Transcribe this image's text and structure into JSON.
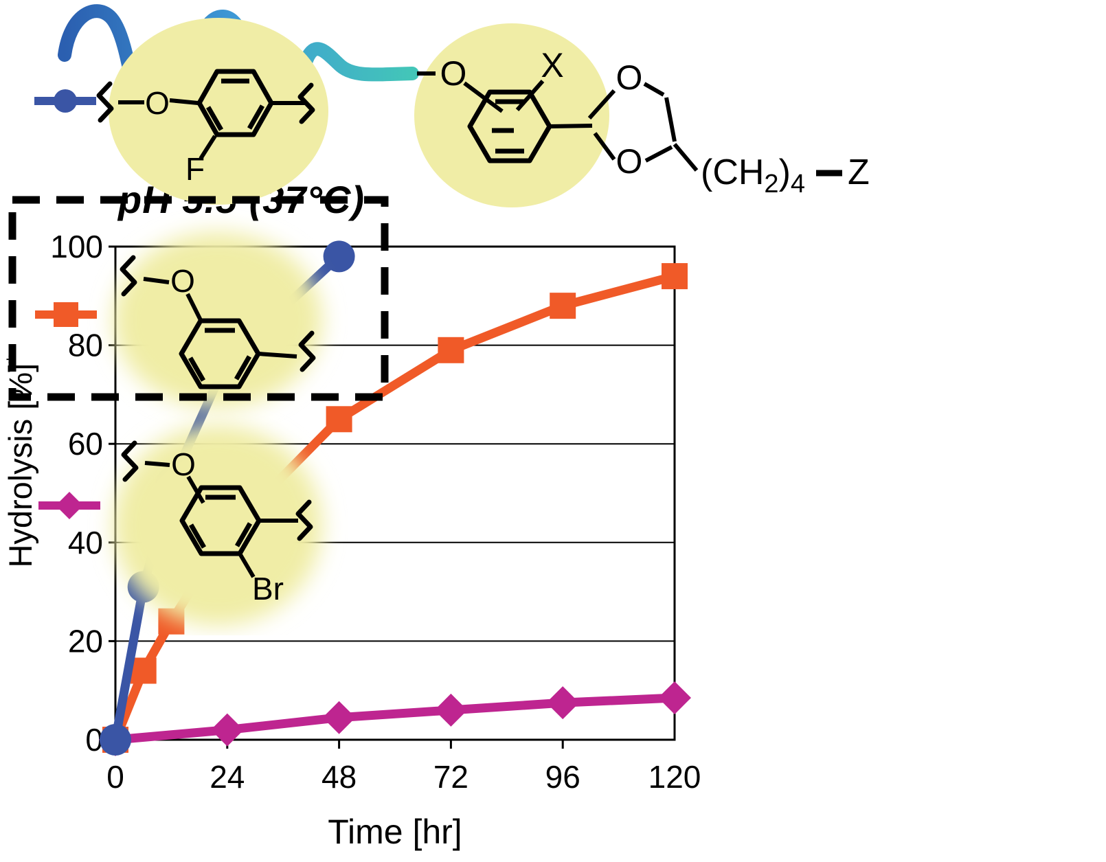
{
  "figure": {
    "title": "pH 5.5 (37°C)",
    "y_axis_label": "Hydrolysis [%]",
    "y_axis_label_superscript": "*",
    "x_axis_label": "Time [hr]"
  },
  "top_structure": {
    "ether_oxygen": "O",
    "substituent_x": "X",
    "dioxolane_oxygen_top": "O",
    "dioxolane_oxygen_bottom": "O",
    "chain_prefix": "(CH",
    "chain_sub_2": "2",
    "chain_paren": ")",
    "chain_sub_4": "4",
    "chain_terminal": "Z"
  },
  "chart_data": {
    "type": "line",
    "title": "pH 5.5 (37°C)",
    "xlabel": "Time [hr]",
    "ylabel": "Hydrolysis [%]*",
    "xlim": [
      0,
      120
    ],
    "ylim": [
      0,
      100
    ],
    "xticks": [
      0,
      24,
      48,
      72,
      96,
      120
    ],
    "yticks": [
      0,
      20,
      40,
      60,
      80,
      100
    ],
    "grid": "horizontal-only",
    "legend_position": "right, structural formulas",
    "draw_order": [
      1,
      2,
      0
    ],
    "series": [
      {
        "name": "fluoro-substituted aryl acetal (blue circles)",
        "marker": "circle",
        "color": "#3A55A5",
        "x": [
          0,
          6,
          12,
          24,
          48
        ],
        "y": [
          0,
          31,
          52,
          77,
          98
        ]
      },
      {
        "name": "meta-linked aryl acetal, boxed lead (orange squares)",
        "marker": "square",
        "color": "#F05A28",
        "x": [
          0,
          6,
          12,
          24,
          48,
          72,
          96,
          120
        ],
        "y": [
          0,
          14,
          24,
          42,
          65,
          79,
          88,
          94
        ]
      },
      {
        "name": "bromo-substituted aryl acetal (magenta diamonds)",
        "marker": "diamond",
        "color": "#BE2590",
        "x": [
          0,
          24,
          48,
          72,
          96,
          120
        ],
        "y": [
          0,
          2,
          4.5,
          6,
          7.5,
          8.5
        ]
      }
    ]
  },
  "legend": {
    "entries": [
      {
        "name": "fluoro aryl acetal",
        "marker": "circle",
        "color": "#3A55A5",
        "boxed": false,
        "atoms": {
          "ether_oxygen": "O",
          "substituent": "F"
        }
      },
      {
        "name": "meta-linked aryl acetal (boxed)",
        "marker": "square",
        "color": "#F05A28",
        "boxed": true,
        "atoms": {
          "ether_oxygen": "O"
        }
      },
      {
        "name": "bromo aryl acetal",
        "marker": "diamond",
        "color": "#BE2590",
        "boxed": false,
        "atoms": {
          "ether_oxygen": "O",
          "substituent": "Br"
        }
      }
    ]
  },
  "colors": {
    "highlight_yellow": "#F0EDA6",
    "structure_black": "#000000",
    "polymer_gradient": [
      "#2B5FB0",
      "#3E9AD6",
      "#43C6B8"
    ]
  }
}
